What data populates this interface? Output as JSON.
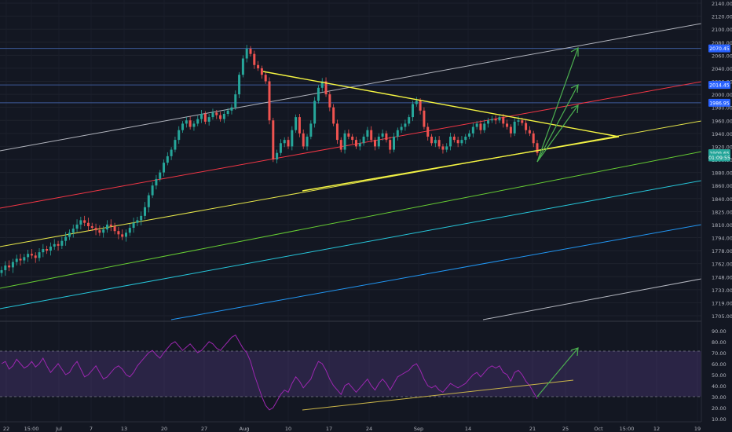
{
  "chart_data": [
    {
      "type": "candlestick",
      "title": "",
      "xlabel": "",
      "ylabel": "",
      "ylim": [
        1695,
        2145
      ],
      "y_axis_labels": [
        "2140.00",
        "2120.00",
        "2100.00",
        "2080.00",
        "2060.00",
        "2040.00",
        "2020.00",
        "2000.00",
        "1980.00",
        "1960.00",
        "1940.00",
        "1920.00",
        "1900.00",
        "1880.00",
        "1860.00",
        "1840.00",
        "1825.00",
        "1810.00",
        "1794.00",
        "1778.00",
        "1762.00",
        "1748.00",
        "1733.00",
        "1719.00",
        "1705.00"
      ],
      "x_axis_labels": [
        "22",
        "15:00",
        "Jul",
        "7",
        "13",
        "20",
        "27",
        "Aug",
        "10",
        "17",
        "24",
        "Sep",
        "14",
        "21",
        "25",
        "Oct",
        "15:00",
        "12",
        "19"
      ],
      "price_badges": [
        {
          "label": "2070.45",
          "value": 2070.45,
          "color": "#2962ff"
        },
        {
          "label": "2014.45",
          "value": 2014.45,
          "color": "#2962ff"
        },
        {
          "label": "1986.95",
          "value": 1986.95,
          "color": "#2962ff"
        },
        {
          "label": "1909.65",
          "value": 1909.65,
          "color": "#26a69a"
        },
        {
          "label": "01:09:55",
          "value": 1903,
          "color": "#26a69a"
        }
      ],
      "horizontal_levels": [
        2070.45,
        2014.45,
        1986.95
      ],
      "candles_close": [
        1755,
        1760,
        1758,
        1764,
        1768,
        1766,
        1770,
        1774,
        1772,
        1769,
        1776,
        1780,
        1778,
        1783,
        1786,
        1784,
        1790,
        1795,
        1800,
        1805,
        1810,
        1815,
        1812,
        1808,
        1806,
        1803,
        1800,
        1804,
        1810,
        1808,
        1802,
        1798,
        1795,
        1800,
        1806,
        1812,
        1815,
        1820,
        1830,
        1845,
        1860,
        1870,
        1880,
        1895,
        1905,
        1915,
        1930,
        1945,
        1955,
        1960,
        1950,
        1955,
        1962,
        1970,
        1958,
        1965,
        1972,
        1968,
        1962,
        1970,
        1975,
        1980,
        2000,
        2030,
        2055,
        2070,
        2062,
        2045,
        2040,
        2030,
        2020,
        1960,
        1900,
        1910,
        1925,
        1930,
        1920,
        1945,
        1965,
        1940,
        1920,
        1935,
        1955,
        1990,
        2010,
        2020,
        2000,
        1980,
        1955,
        1930,
        1915,
        1940,
        1935,
        1930,
        1920,
        1925,
        1935,
        1945,
        1930,
        1920,
        1935,
        1940,
        1930,
        1915,
        1935,
        1945,
        1950,
        1955,
        1965,
        1985,
        1990,
        1975,
        1950,
        1935,
        1925,
        1930,
        1920,
        1915,
        1920,
        1935,
        1930,
        1925,
        1930,
        1935,
        1940,
        1950,
        1955,
        1945,
        1955,
        1960,
        1962,
        1960,
        1965,
        1955,
        1950,
        1940,
        1958,
        1960,
        1956,
        1945,
        1940,
        1925,
        1910
      ]
    },
    {
      "type": "line",
      "title": "",
      "xlabel": "",
      "ylabel": "",
      "ylim": [
        5,
        95
      ],
      "y_axis_labels": [
        "90.00",
        "80.00",
        "70.00",
        "60.00",
        "50.00",
        "40.00",
        "30.00",
        "20.00",
        "10.00"
      ],
      "levels": [
        70,
        30
      ],
      "series": [
        {
          "values": [
            60,
            62,
            55,
            58,
            64,
            60,
            56,
            58,
            62,
            57,
            60,
            65,
            58,
            52,
            56,
            60,
            55,
            50,
            52,
            58,
            62,
            55,
            48,
            50,
            54,
            58,
            52,
            46,
            48,
            52,
            56,
            58,
            55,
            50,
            48,
            52,
            58,
            62,
            66,
            70,
            72,
            68,
            65,
            70,
            74,
            78,
            80,
            76,
            72,
            75,
            78,
            74,
            70,
            72,
            76,
            80,
            78,
            74,
            72,
            76,
            80,
            84,
            86,
            80,
            74,
            70,
            62,
            50,
            40,
            30,
            22,
            18,
            20,
            26,
            32,
            36,
            34,
            42,
            48,
            44,
            38,
            42,
            46,
            55,
            62,
            60,
            54,
            46,
            40,
            36,
            32,
            40,
            42,
            38,
            34,
            38,
            42,
            46,
            40,
            36,
            42,
            46,
            42,
            36,
            42,
            48,
            50,
            52,
            54,
            58,
            60,
            54,
            46,
            40,
            38,
            40,
            36,
            34,
            38,
            42,
            40,
            38,
            40,
            42,
            46,
            50,
            52,
            48,
            52,
            56,
            58,
            56,
            58,
            52,
            50,
            44,
            52,
            54,
            50,
            44,
            40,
            34,
            28
          ]
        }
      ]
    }
  ]
}
